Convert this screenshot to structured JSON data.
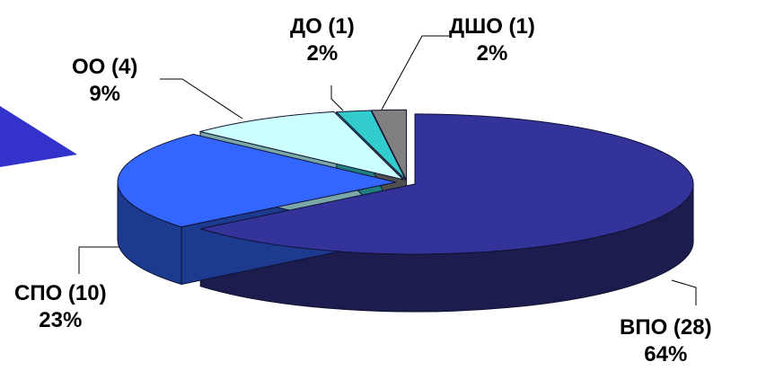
{
  "chart_data": {
    "type": "pie",
    "title": "",
    "three_d": true,
    "legend": "none",
    "categories": [
      "ВПО",
      "СПО",
      "ОО",
      "ДО",
      "ДШО"
    ],
    "counts": [
      28,
      10,
      4,
      1,
      1
    ],
    "percents": [
      64,
      23,
      9,
      2,
      2
    ],
    "labels": [
      {
        "name": "ВПО (28)",
        "percent": "64%"
      },
      {
        "name": "СПО (10)",
        "percent": "23%"
      },
      {
        "name": "ОО (4)",
        "percent": "9%"
      },
      {
        "name": "ДО (1)",
        "percent": "2%"
      },
      {
        "name": "ДШО (1)",
        "percent": "2%"
      }
    ],
    "colors": [
      "#33339a",
      "#3366ff",
      "#ccffff",
      "#33cccc",
      "#808080"
    ],
    "side_colors": [
      "#1c1c4e",
      "#1c3a8e",
      "#7aa7a7",
      "#1f7f7f",
      "#505050"
    ]
  },
  "decor": {
    "arrow_color": "#3333cc"
  }
}
